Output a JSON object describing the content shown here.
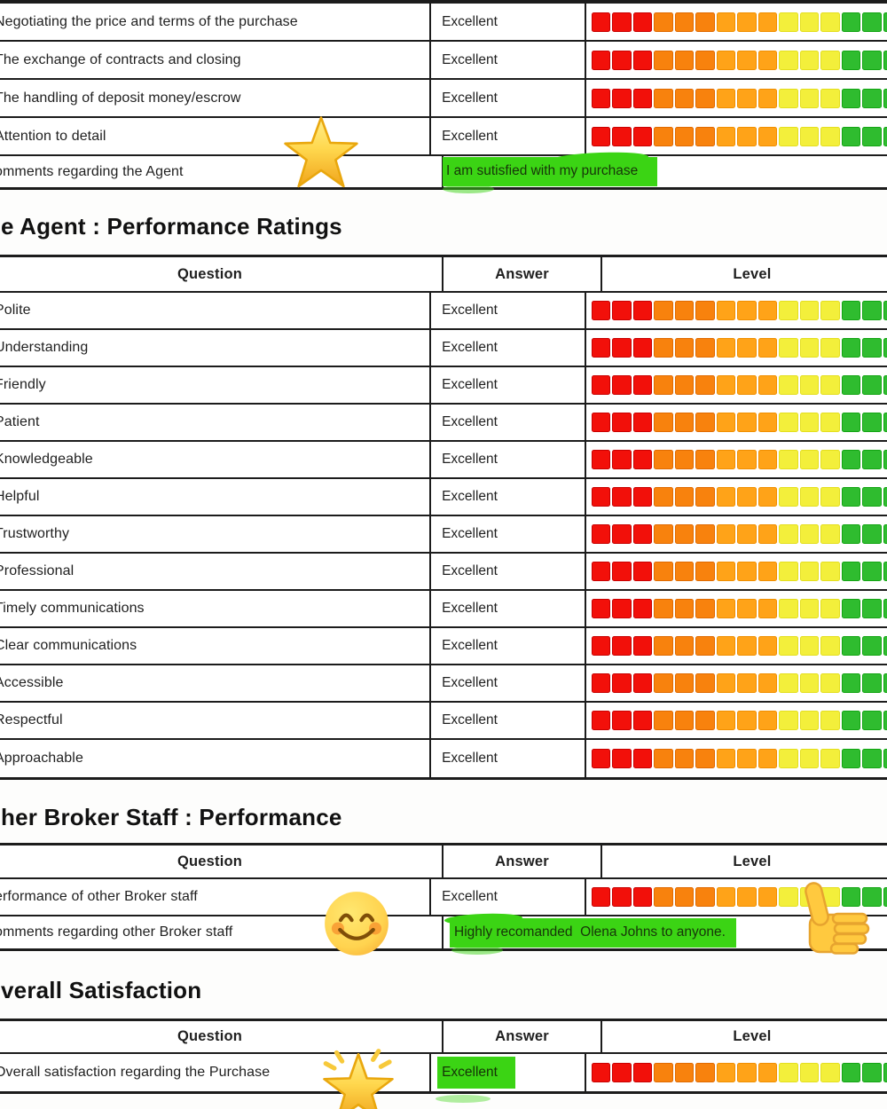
{
  "colors": {
    "highlight_green": "#3BD414",
    "table_border": "#1c1c1c",
    "body_text": "#1f1f1f",
    "comment_text": "#17350a"
  },
  "level_bar": {
    "description": "red-to-green rating scale of small squares",
    "segments": [
      {
        "name": "red",
        "fill": "#F2100A",
        "border": "#C90000",
        "count": 3
      },
      {
        "name": "orange",
        "fill": "#F8820D",
        "border": "#E06A00",
        "count": 3
      },
      {
        "name": "light-orange",
        "fill": "#FFA318",
        "border": "#F08F00",
        "count": 3
      },
      {
        "name": "yellow",
        "fill": "#F3EF3B",
        "border": "#E4DF1E",
        "count": 3
      },
      {
        "name": "green",
        "fill": "#2FBC2F",
        "border": "#13A513",
        "count": 3
      }
    ]
  },
  "sections": [
    {
      "id": "agent_top",
      "heading": null,
      "rows": [
        {
          "question": "Negotiating the price and terms of the purchase",
          "answer": "Excellent",
          "level": true
        },
        {
          "question": "The exchange of contracts and closing",
          "answer": "Excellent",
          "level": true
        },
        {
          "question": "The handling of deposit money/escrow",
          "answer": "Excellent",
          "level": true
        },
        {
          "question": "Attention to detail",
          "answer": "Excellent",
          "level": true
        },
        {
          "question": "omments regarding the Agent",
          "comment": "I am sutisfied with my purchase"
        }
      ]
    },
    {
      "id": "agent_ratings",
      "heading": "e Agent : Performance Ratings",
      "headers": {
        "question": "Question",
        "answer": "Answer",
        "level": "Level"
      },
      "rows": [
        {
          "question": "Polite",
          "answer": "Excellent",
          "level": true
        },
        {
          "question": "Understanding",
          "answer": "Excellent",
          "level": true
        },
        {
          "question": "Friendly",
          "answer": "Excellent",
          "level": true
        },
        {
          "question": "Patient",
          "answer": "Excellent",
          "level": true
        },
        {
          "question": "Knowledgeable",
          "answer": "Excellent",
          "level": true
        },
        {
          "question": "Helpful",
          "answer": "Excellent",
          "level": true
        },
        {
          "question": "Trustworthy",
          "answer": "Excellent",
          "level": true
        },
        {
          "question": "Professional",
          "answer": "Excellent",
          "level": true
        },
        {
          "question": "Timely communications",
          "answer": "Excellent",
          "level": true
        },
        {
          "question": "Clear communications",
          "answer": "Excellent",
          "level": true
        },
        {
          "question": "Accessible",
          "answer": "Excellent",
          "level": true
        },
        {
          "question": "Respectful",
          "answer": "Excellent",
          "level": true
        },
        {
          "question": "Approachable",
          "answer": "Excellent",
          "level": true
        }
      ]
    },
    {
      "id": "broker_staff",
      "heading": "her Broker Staff : Performance",
      "headers": {
        "question": "Question",
        "answer": "Answer",
        "level": "Level"
      },
      "rows": [
        {
          "question": "erformance of other Broker staff",
          "answer": "Excellent",
          "level": true
        },
        {
          "question": "omments regarding other Broker staff",
          "comment": "Highly recomanded  Olena Johns to anyone."
        }
      ]
    },
    {
      "id": "overall",
      "heading": "verall Satisfaction",
      "headers": {
        "question": "Question",
        "answer": "Answer",
        "level": "Level"
      },
      "rows": [
        {
          "question": "Overall satisfaction regarding the Purchase",
          "answer": "Excellent",
          "answer_highlight": true,
          "level": true
        }
      ]
    }
  ],
  "emojis": [
    {
      "name": "star-emoji"
    },
    {
      "name": "smiling-face-emoji"
    },
    {
      "name": "thumbs-up-emoji"
    },
    {
      "name": "glowing-star-emoji"
    }
  ]
}
